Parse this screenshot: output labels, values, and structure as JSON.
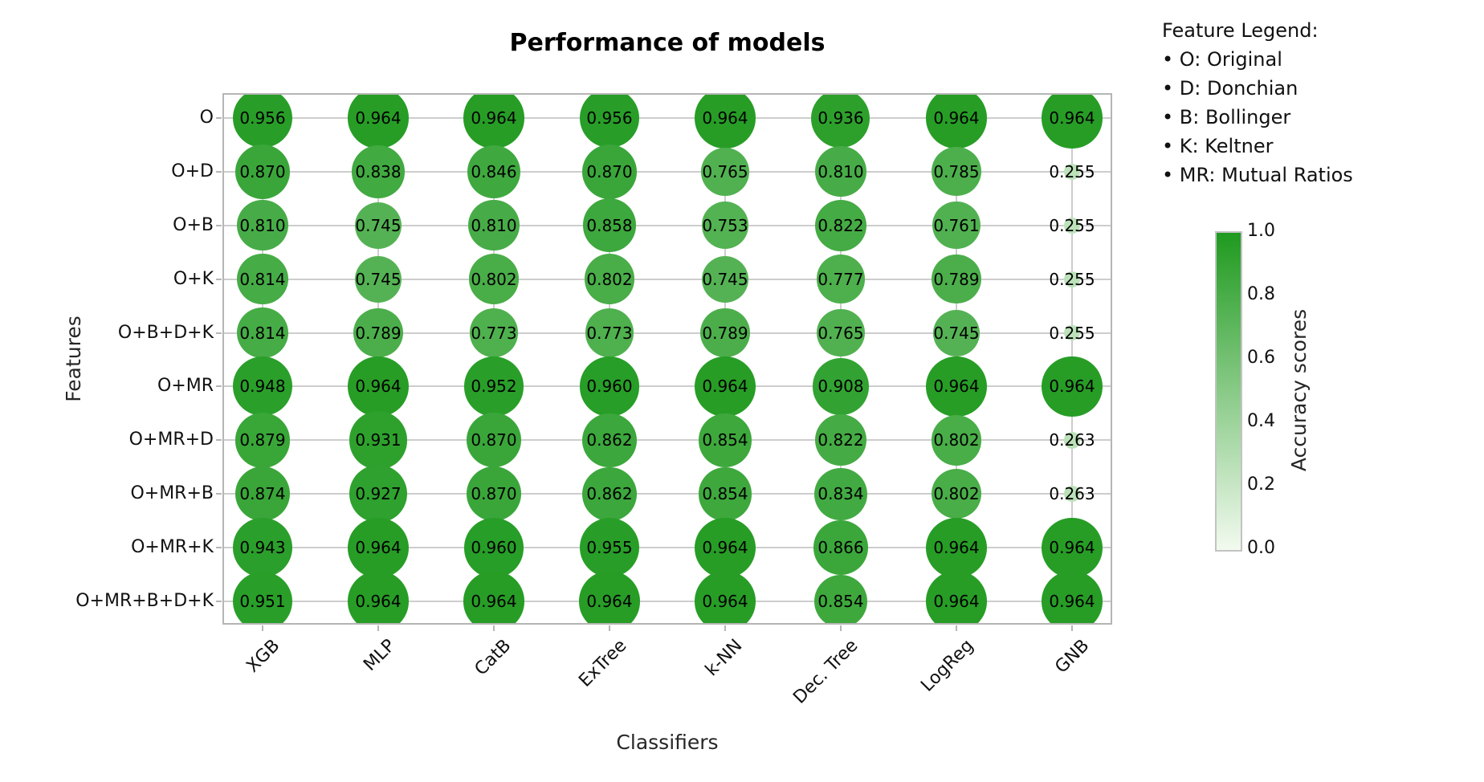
{
  "page": {
    "title": "Performance of models",
    "xlabel": "Classifiers",
    "ylabel": "Features"
  },
  "feature_legend": {
    "heading": "Feature Legend:",
    "bullet": "•",
    "items": [
      "O: Original",
      "D: Donchian",
      "B: Bollinger",
      "K: Keltner",
      "MR: Mutual Ratios"
    ]
  },
  "colorbar": {
    "label": "Accuracy scores",
    "tick_labels": [
      "1.0",
      "0.8",
      "0.6",
      "0.4",
      "0.2",
      "0.0"
    ],
    "min_color": "#f2faef",
    "max_color": "#1f9a1f"
  },
  "chart_data": {
    "type": "scatter",
    "subtype": "bubble-matrix",
    "title": "Performance of models",
    "xlabel": "Classifiers",
    "ylabel": "Features",
    "x_categories": [
      "XGB",
      "MLP",
      "CatB",
      "ExTree",
      "k-NN",
      "Dec. Tree",
      "LogReg",
      "GNB"
    ],
    "y_categories": [
      "O",
      "O+D",
      "O+B",
      "O+K",
      "O+B+D+K",
      "O+MR",
      "O+MR+D",
      "O+MR+B",
      "O+MR+K",
      "O+MR+B+D+K"
    ],
    "values": [
      [
        0.956,
        0.964,
        0.964,
        0.956,
        0.964,
        0.936,
        0.964,
        0.964
      ],
      [
        0.87,
        0.838,
        0.846,
        0.87,
        0.765,
        0.81,
        0.785,
        0.255
      ],
      [
        0.81,
        0.745,
        0.81,
        0.858,
        0.753,
        0.822,
        0.761,
        0.255
      ],
      [
        0.814,
        0.745,
        0.802,
        0.802,
        0.745,
        0.777,
        0.789,
        0.255
      ],
      [
        0.814,
        0.789,
        0.773,
        0.773,
        0.789,
        0.765,
        0.745,
        0.255
      ],
      [
        0.948,
        0.964,
        0.952,
        0.96,
        0.964,
        0.908,
        0.964,
        0.964
      ],
      [
        0.879,
        0.931,
        0.87,
        0.862,
        0.854,
        0.822,
        0.802,
        0.263
      ],
      [
        0.874,
        0.927,
        0.87,
        0.862,
        0.854,
        0.834,
        0.802,
        0.263
      ],
      [
        0.943,
        0.964,
        0.96,
        0.955,
        0.964,
        0.866,
        0.964,
        0.964
      ],
      [
        0.951,
        0.964,
        0.964,
        0.964,
        0.964,
        0.854,
        0.964,
        0.964
      ]
    ],
    "value_encoding": {
      "size": "accuracy score",
      "color": "accuracy score"
    },
    "color_scale": {
      "min": 0.0,
      "max": 1.0,
      "min_color": "#f2faef",
      "max_color": "#1f9a1f"
    },
    "grid": true,
    "axis_ranges": {
      "colorbar": [
        0.0,
        1.0
      ]
    },
    "legend_position": "right"
  }
}
